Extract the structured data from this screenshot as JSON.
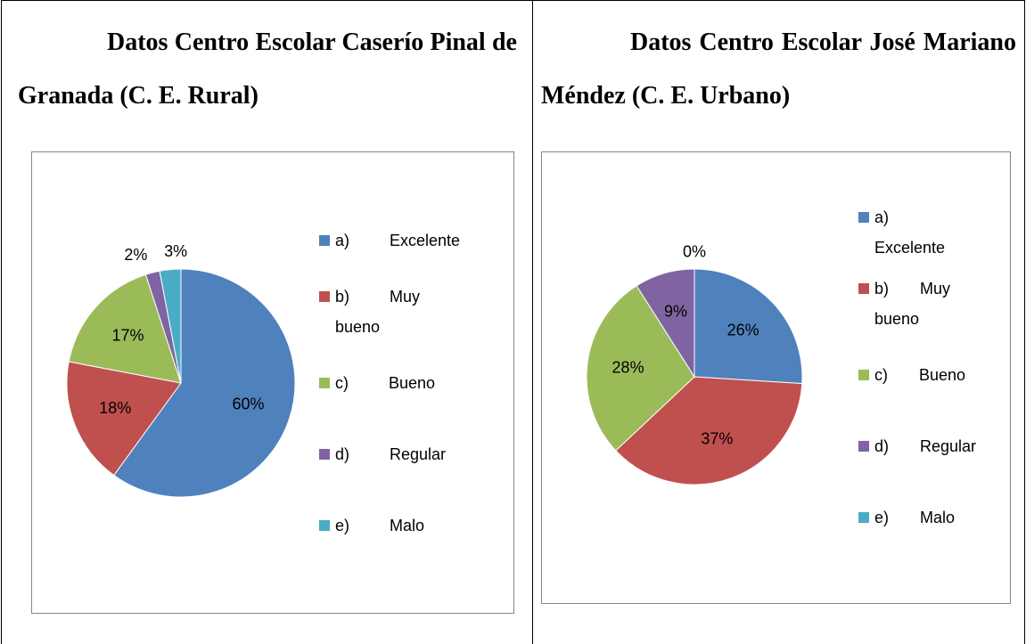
{
  "chart_data": [
    {
      "type": "pie",
      "title": "Datos Centro Escolar Caserío Pinal de Granada  (C. E. Rural)",
      "categories": [
        "a) Excelente",
        "b) Muy bueno",
        "c) Bueno",
        "d) Regular",
        "e) Malo"
      ],
      "values": [
        60,
        18,
        17,
        2,
        3
      ],
      "value_labels": [
        "60%",
        "18%",
        "17%",
        "2%",
        "3%"
      ],
      "colors": [
        "#4f81bd",
        "#c0504d",
        "#9bbb59",
        "#8064a2",
        "#4bacc6"
      ],
      "legend": "right"
    },
    {
      "type": "pie",
      "title": "Datos Centro Escolar José Mariano Méndez  (C. E. Urbano)",
      "categories": [
        "a) Excelente",
        "b) Muy bueno",
        "c) Bueno",
        "d) Regular",
        "e) Malo"
      ],
      "values": [
        26,
        37,
        28,
        9,
        0
      ],
      "value_labels": [
        "26%",
        "37%",
        "28%",
        "9%",
        "0%"
      ],
      "colors": [
        "#4f81bd",
        "#c0504d",
        "#9bbb59",
        "#8064a2",
        "#4bacc6"
      ],
      "legend": "right"
    }
  ]
}
